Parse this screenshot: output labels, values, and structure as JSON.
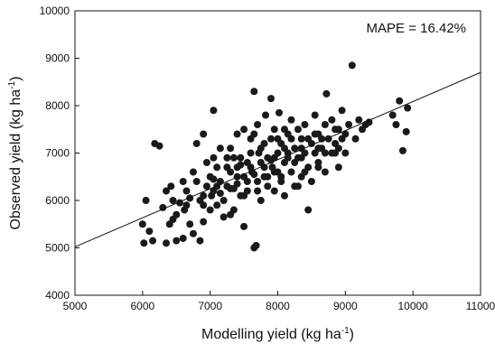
{
  "chart_data": {
    "type": "scatter",
    "title": "",
    "xlabel": "Modelling yield (kg ha",
    "xlabel_sup": "-1",
    "xlabel_tail": ")",
    "ylabel": "Observed yield (kg ha",
    "ylabel_sup": "-1",
    "ylabel_tail": ")",
    "xlim": [
      5000,
      11000
    ],
    "ylim": [
      4000,
      10000
    ],
    "xticks": [
      5000,
      6000,
      7000,
      8000,
      9000,
      10000,
      11000
    ],
    "yticks": [
      4000,
      5000,
      6000,
      7000,
      8000,
      9000,
      10000
    ],
    "grid": false,
    "annotation": "MAPE = 16.42%",
    "trendline": {
      "x": [
        5000,
        11000
      ],
      "y": [
        5020,
        8700
      ]
    },
    "marker_color": "#1a1a1a",
    "points": [
      [
        6000,
        5500
      ],
      [
        6020,
        5100
      ],
      [
        6050,
        6000
      ],
      [
        6100,
        5350
      ],
      [
        6150,
        5150
      ],
      [
        6180,
        7200
      ],
      [
        6250,
        7150
      ],
      [
        6300,
        5850
      ],
      [
        6350,
        5100
      ],
      [
        6400,
        5500
      ],
      [
        6420,
        6300
      ],
      [
        6450,
        6000
      ],
      [
        6500,
        5150
      ],
      [
        6500,
        5700
      ],
      [
        6550,
        5950
      ],
      [
        6600,
        5200
      ],
      [
        6620,
        5800
      ],
      [
        6650,
        6200
      ],
      [
        6700,
        5500
      ],
      [
        6700,
        6050
      ],
      [
        6750,
        5300
      ],
      [
        6800,
        6400
      ],
      [
        6850,
        5150
      ],
      [
        6850,
        6000
      ],
      [
        6900,
        5550
      ],
      [
        6950,
        6300
      ],
      [
        6950,
        6800
      ],
      [
        7000,
        5800
      ],
      [
        7000,
        6500
      ],
      [
        7020,
        6100
      ],
      [
        6800,
        7200
      ],
      [
        6900,
        7400
      ],
      [
        7050,
        7900
      ],
      [
        7050,
        6200
      ],
      [
        7100,
        5900
      ],
      [
        7100,
        6700
      ],
      [
        7150,
        6400
      ],
      [
        7200,
        6000
      ],
      [
        7200,
        5650
      ],
      [
        7250,
        6300
      ],
      [
        7250,
        6900
      ],
      [
        7300,
        6600
      ],
      [
        7300,
        7100
      ],
      [
        7350,
        6250
      ],
      [
        7350,
        5800
      ],
      [
        7400,
        6700
      ],
      [
        7400,
        7400
      ],
      [
        7450,
        6100
      ],
      [
        7450,
        6900
      ],
      [
        7500,
        6500
      ],
      [
        7500,
        5450
      ],
      [
        7500,
        7500
      ],
      [
        7550,
        6200
      ],
      [
        7550,
        6800
      ],
      [
        7600,
        7000
      ],
      [
        7600,
        7300
      ],
      [
        7620,
        6600
      ],
      [
        7650,
        8300
      ],
      [
        7650,
        5000
      ],
      [
        7680,
        5050
      ],
      [
        7700,
        6400
      ],
      [
        7700,
        7600
      ],
      [
        7720,
        7000
      ],
      [
        7750,
        6000
      ],
      [
        7750,
        6800
      ],
      [
        7800,
        7200
      ],
      [
        7800,
        6500
      ],
      [
        7820,
        7800
      ],
      [
        7850,
        6300
      ],
      [
        7850,
        6900
      ],
      [
        7900,
        7300
      ],
      [
        7900,
        8150
      ],
      [
        7920,
        6700
      ],
      [
        7950,
        6200
      ],
      [
        7950,
        7500
      ],
      [
        8000,
        7000
      ],
      [
        8000,
        6600
      ],
      [
        8020,
        7850
      ],
      [
        8050,
        6400
      ],
      [
        8050,
        7200
      ],
      [
        8100,
        6800
      ],
      [
        8100,
        6100
      ],
      [
        8150,
        7400
      ],
      [
        8150,
        7000
      ],
      [
        8200,
        6600
      ],
      [
        8200,
        7700
      ],
      [
        8250,
        6300
      ],
      [
        8250,
        7100
      ],
      [
        8300,
        6900
      ],
      [
        8300,
        7500
      ],
      [
        8350,
        6500
      ],
      [
        8350,
        7300
      ],
      [
        8400,
        7000
      ],
      [
        8400,
        7600
      ],
      [
        8450,
        6700
      ],
      [
        8450,
        5800
      ],
      [
        8500,
        7200
      ],
      [
        8500,
        6400
      ],
      [
        8550,
        7000
      ],
      [
        8550,
        7800
      ],
      [
        8600,
        6800
      ],
      [
        8600,
        7400
      ],
      [
        8650,
        7100
      ],
      [
        8700,
        7600
      ],
      [
        8700,
        6600
      ],
      [
        8720,
        8250
      ],
      [
        8750,
        7300
      ],
      [
        8800,
        7000
      ],
      [
        8800,
        7700
      ],
      [
        8850,
        7200
      ],
      [
        8900,
        7500
      ],
      [
        8900,
        6700
      ],
      [
        8950,
        7900
      ],
      [
        9000,
        7400
      ],
      [
        9000,
        7000
      ],
      [
        9050,
        7600
      ],
      [
        9100,
        8850
      ],
      [
        9150,
        7300
      ],
      [
        9200,
        7700
      ],
      [
        9300,
        7600
      ],
      [
        9250,
        7500
      ],
      [
        9350,
        7650
      ],
      [
        9700,
        7800
      ],
      [
        9750,
        7600
      ],
      [
        9800,
        8100
      ],
      [
        9850,
        7050
      ],
      [
        9900,
        7450
      ],
      [
        9920,
        7950
      ],
      [
        6350,
        6200
      ],
      [
        6600,
        6400
      ],
      [
        6750,
        6600
      ],
      [
        7050,
        6900
      ],
      [
        7150,
        7100
      ],
      [
        7400,
        6500
      ],
      [
        7650,
        7400
      ],
      [
        7950,
        6900
      ],
      [
        8250,
        6800
      ],
      [
        8550,
        7400
      ],
      [
        8850,
        7500
      ],
      [
        7300,
        5700
      ],
      [
        7550,
        6400
      ],
      [
        7800,
        6700
      ],
      [
        8050,
        6500
      ],
      [
        8300,
        6300
      ],
      [
        8600,
        7100
      ],
      [
        8900,
        7100
      ],
      [
        7250,
        6700
      ],
      [
        7500,
        6100
      ],
      [
        7750,
        7100
      ],
      [
        8000,
        7300
      ],
      [
        8200,
        7300
      ],
      [
        8450,
        7300
      ],
      [
        8700,
        7000
      ],
      [
        8950,
        7300
      ],
      [
        7100,
        6300
      ],
      [
        7350,
        6900
      ],
      [
        7600,
        6700
      ],
      [
        7850,
        6500
      ],
      [
        8100,
        7500
      ],
      [
        8350,
        7100
      ],
      [
        8600,
        6700
      ],
      [
        8850,
        7000
      ],
      [
        6900,
        6100
      ],
      [
        7050,
        6450
      ],
      [
        7300,
        6250
      ],
      [
        7450,
        6750
      ],
      [
        7700,
        6200
      ],
      [
        7950,
        6600
      ],
      [
        8150,
        6900
      ],
      [
        8400,
        6600
      ],
      [
        8650,
        7300
      ],
      [
        6450,
        5600
      ],
      [
        6650,
        5900
      ],
      [
        6900,
        5900
      ],
      [
        7150,
        6150
      ],
      [
        7400,
        6350
      ],
      [
        7650,
        6550
      ],
      [
        7900,
        6850
      ],
      [
        8100,
        7100
      ],
      [
        8350,
        6900
      ]
    ]
  }
}
